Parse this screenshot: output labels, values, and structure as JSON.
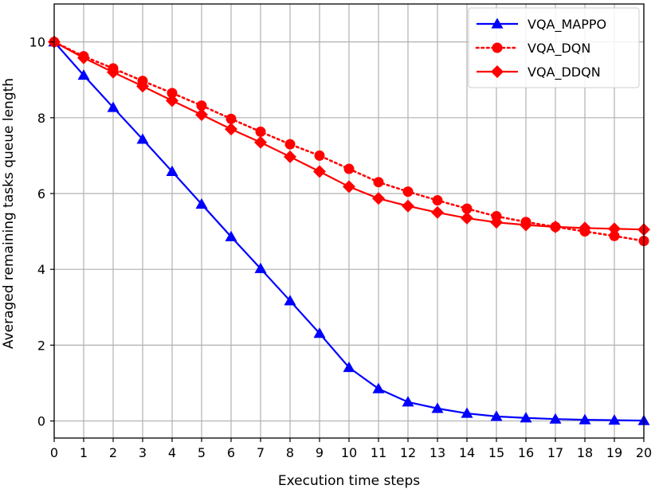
{
  "chart_data": {
    "type": "line",
    "title": "",
    "xlabel": "Execution time steps",
    "ylabel": "Averaged remaining tasks queue length",
    "x": [
      0,
      1,
      2,
      3,
      4,
      5,
      6,
      7,
      8,
      9,
      10,
      11,
      12,
      13,
      14,
      15,
      16,
      17,
      18,
      19,
      20
    ],
    "xlim": [
      0,
      20
    ],
    "ylim": [
      -0.45,
      11.0
    ],
    "xticks": [
      0,
      1,
      2,
      3,
      4,
      5,
      6,
      7,
      8,
      9,
      10,
      11,
      12,
      13,
      14,
      15,
      16,
      17,
      18,
      19,
      20
    ],
    "yticks": [
      0,
      2,
      4,
      6,
      8,
      10
    ],
    "grid": true,
    "legend_position": "top-right",
    "series": [
      {
        "name": "VQA_MAPPO",
        "color": "#0000ff",
        "marker": "triangle",
        "linestyle": "solid",
        "values": [
          10.0,
          9.12,
          8.27,
          7.43,
          6.58,
          5.72,
          4.86,
          4.02,
          3.17,
          2.31,
          1.41,
          0.85,
          0.5,
          0.33,
          0.2,
          0.12,
          0.08,
          0.05,
          0.03,
          0.02,
          0.01
        ]
      },
      {
        "name": "VQA_DQN",
        "color": "#ff0000",
        "marker": "circle",
        "linestyle": "dotted",
        "values": [
          10.0,
          9.62,
          9.3,
          8.97,
          8.65,
          8.32,
          7.97,
          7.63,
          7.3,
          7.0,
          6.65,
          6.3,
          6.05,
          5.82,
          5.6,
          5.4,
          5.25,
          5.12,
          5.0,
          4.88,
          4.75
        ]
      },
      {
        "name": "VQA_DDQN",
        "color": "#ff0000",
        "marker": "diamond",
        "linestyle": "solid",
        "values": [
          10.0,
          9.58,
          9.2,
          8.83,
          8.45,
          8.08,
          7.7,
          7.35,
          6.97,
          6.58,
          6.18,
          5.87,
          5.67,
          5.5,
          5.35,
          5.24,
          5.17,
          5.12,
          5.09,
          5.07,
          5.05
        ]
      }
    ]
  }
}
